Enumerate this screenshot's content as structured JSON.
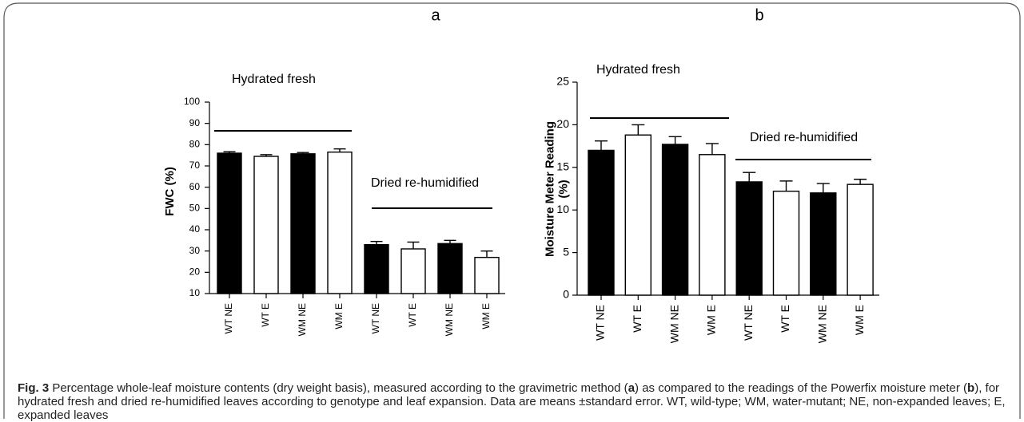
{
  "chart_data": [
    {
      "type": "bar",
      "panel": "a",
      "ylabel": [
        "FWC  (%)"
      ],
      "categories": [
        "WT NE",
        "WT E",
        "WM NE",
        "WM E",
        "WT NE",
        "WT E",
        "WM NE",
        "WM E"
      ],
      "values": [
        76,
        74.5,
        75.7,
        76.5,
        33,
        31,
        33.5,
        27
      ],
      "errors": [
        0.7,
        0.8,
        0.6,
        1.5,
        1.5,
        3.2,
        1.5,
        3
      ],
      "colors": [
        "#000000",
        "#ffffff",
        "#000000",
        "#ffffff",
        "#000000",
        "#ffffff",
        "#000000",
        "#ffffff"
      ],
      "ylim": [
        10,
        100
      ],
      "yticks": [
        10,
        20,
        30,
        40,
        50,
        60,
        70,
        80,
        90,
        100
      ],
      "annotations": [
        "Hydrated fresh",
        "Dried re-humidified"
      ]
    },
    {
      "type": "bar",
      "panel": "b",
      "ylabel": [
        "Moisture Meter Reading",
        "(%)"
      ],
      "categories": [
        "WT NE",
        "WT E",
        "WM NE",
        "WM E",
        "WT NE",
        "WT E",
        "WM NE",
        "WM E"
      ],
      "values": [
        17,
        18.8,
        17.7,
        16.5,
        13.3,
        12.2,
        12,
        13
      ],
      "errors": [
        1.1,
        1.2,
        0.9,
        1.3,
        1.1,
        1.2,
        1.1,
        0.6
      ],
      "colors": [
        "#000000",
        "#ffffff",
        "#000000",
        "#ffffff",
        "#000000",
        "#ffffff",
        "#000000",
        "#ffffff"
      ],
      "ylim": [
        0,
        25
      ],
      "yticks": [
        0,
        5,
        10,
        15,
        20,
        25
      ],
      "annotations": [
        "Hydrated fresh",
        "Dried re-humidified"
      ]
    }
  ],
  "caption": [
    {
      "text": "Fig. 3",
      "bold": true
    },
    {
      "text": " Percentage whole-leaf moisture contents (dry weight basis), measured according to the gravimetric method (",
      "bold": false
    },
    {
      "text": "a",
      "bold": true
    },
    {
      "text": ") as compared to the readings of the Powerfix moisture meter (",
      "bold": false
    },
    {
      "text": "b",
      "bold": true
    },
    {
      "text": "), for hydrated fresh and dried re-humidified leaves according to genotype and leaf expansion. Data are means ±standard error. WT, wild-type; WM, water-mutant; NE, non-expanded leaves; E, expanded leaves",
      "bold": false
    }
  ]
}
